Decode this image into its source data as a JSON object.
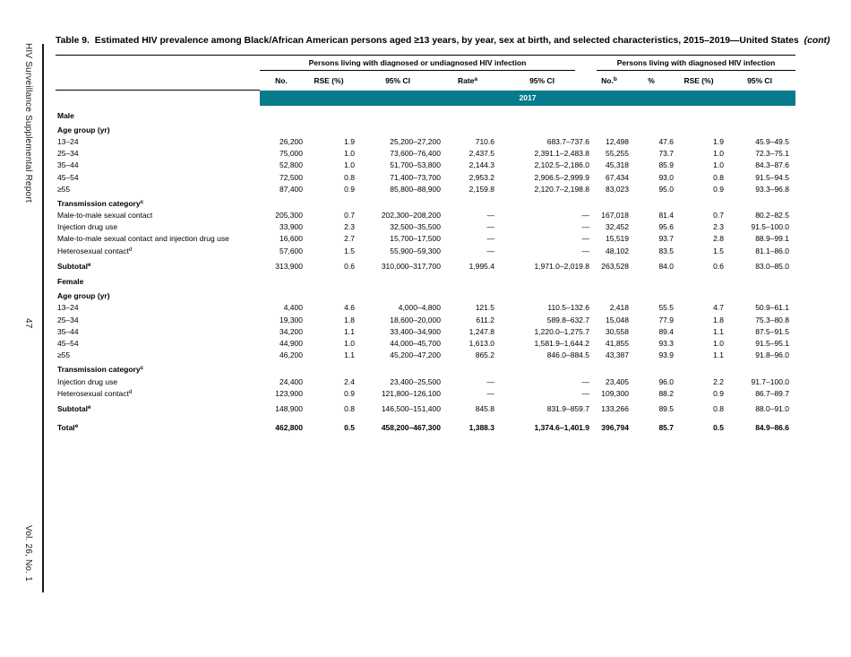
{
  "sidebar": {
    "journal": "HIV Surveillance Supplemental Report",
    "page_number": "47",
    "volume": "Vol. 26, No. 1"
  },
  "title": {
    "prefix": "Table 9.",
    "main": "Estimated HIV prevalence among Black/African American persons aged ≥13 years, by year, sex at birth, and selected characteristics, 2015–2019—United States",
    "cont": "(cont)"
  },
  "table": {
    "group_headers": [
      "Persons living with diagnosed or undiagnosed HIV infection",
      "Persons living with diagnosed HIV infection"
    ],
    "columns": [
      {
        "label": "No."
      },
      {
        "label": "RSE (%)"
      },
      {
        "label": "95% CI"
      },
      {
        "label": "Rate",
        "sup": "a"
      },
      {
        "label": "95% CI"
      },
      {
        "label": "No.",
        "sup": "b"
      },
      {
        "label": "%"
      },
      {
        "label": "RSE (%)"
      },
      {
        "label": "95% CI"
      }
    ],
    "year": "2017",
    "rows": [
      {
        "type": "section",
        "label": "Male"
      },
      {
        "type": "subhead",
        "label": "Age group (yr)"
      },
      {
        "type": "data",
        "label": "13–24",
        "values": [
          "26,200",
          "1.9",
          "25,200–27,200",
          "710.6",
          "683.7–737.6",
          "12,498",
          "47.6",
          "1.9",
          "45.9–49.5"
        ]
      },
      {
        "type": "data",
        "label": "25–34",
        "values": [
          "75,000",
          "1.0",
          "73,600–76,400",
          "2,437.5",
          "2,391.1–2,483.8",
          "55,255",
          "73.7",
          "1.0",
          "72.3–75.1"
        ]
      },
      {
        "type": "data",
        "label": "35–44",
        "values": [
          "52,800",
          "1.0",
          "51,700–53,800",
          "2,144.3",
          "2,102.5–2,186.0",
          "45,318",
          "85.9",
          "1.0",
          "84.3–87.6"
        ]
      },
      {
        "type": "data",
        "label": "45–54",
        "values": [
          "72,500",
          "0.8",
          "71,400–73,700",
          "2,953.2",
          "2,906.5–2,999.9",
          "67,434",
          "93.0",
          "0.8",
          "91.5–94.5"
        ]
      },
      {
        "type": "data",
        "label": "≥55",
        "values": [
          "87,400",
          "0.9",
          "85,800–88,900",
          "2,159.8",
          "2,120.7–2,198.8",
          "83,023",
          "95.0",
          "0.9",
          "93.3–96.8"
        ]
      },
      {
        "type": "subhead",
        "label": "Transmission category",
        "sup": "c"
      },
      {
        "type": "data",
        "label": "Male-to-male sexual contact",
        "values": [
          "205,300",
          "0.7",
          "202,300–208,200",
          "—",
          "—",
          "167,018",
          "81.4",
          "0.7",
          "80.2–82.5"
        ]
      },
      {
        "type": "data",
        "label": "Injection drug use",
        "values": [
          "33,900",
          "2.3",
          "32,500–35,500",
          "—",
          "—",
          "32,452",
          "95.6",
          "2.3",
          "91.5–100.0"
        ]
      },
      {
        "type": "data",
        "label": "Male-to-male sexual contact and injection drug use",
        "values": [
          "16,600",
          "2.7",
          "15,700–17,500",
          "—",
          "—",
          "15,519",
          "93.7",
          "2.8",
          "88.9–99.1"
        ]
      },
      {
        "type": "data",
        "label": "Heterosexual contact",
        "sup": "d",
        "values": [
          "57,600",
          "1.5",
          "55,900–59,300",
          "—",
          "—",
          "48,102",
          "83.5",
          "1.5",
          "81.1–86.0"
        ]
      },
      {
        "type": "subtotal",
        "label": "Subtotal",
        "sup": "e",
        "values": [
          "313,900",
          "0.6",
          "310,000–317,700",
          "1,995.4",
          "1,971.0–2,019.8",
          "263,528",
          "84.0",
          "0.6",
          "83.0–85.0"
        ]
      },
      {
        "type": "section",
        "label": "Female"
      },
      {
        "type": "subhead",
        "label": "Age group (yr)"
      },
      {
        "type": "data",
        "label": "13–24",
        "values": [
          "4,400",
          "4.6",
          "4,000–4,800",
          "121.5",
          "110.5–132.6",
          "2,418",
          "55.5",
          "4.7",
          "50.9–61.1"
        ]
      },
      {
        "type": "data",
        "label": "25–34",
        "values": [
          "19,300",
          "1.8",
          "18,600–20,000",
          "611.2",
          "589.8–632.7",
          "15,048",
          "77.9",
          "1.8",
          "75.3–80.8"
        ]
      },
      {
        "type": "data",
        "label": "35–44",
        "values": [
          "34,200",
          "1.1",
          "33,400–34,900",
          "1,247.8",
          "1,220.0–1,275.7",
          "30,558",
          "89.4",
          "1.1",
          "87.5–91.5"
        ]
      },
      {
        "type": "data",
        "label": "45–54",
        "values": [
          "44,900",
          "1.0",
          "44,000–45,700",
          "1,613.0",
          "1,581.9–1,644.2",
          "41,855",
          "93.3",
          "1.0",
          "91.5–95.1"
        ]
      },
      {
        "type": "data",
        "label": "≥55",
        "values": [
          "46,200",
          "1.1",
          "45,200–47,200",
          "865.2",
          "846.0–884.5",
          "43,387",
          "93.9",
          "1.1",
          "91.8–96.0"
        ]
      },
      {
        "type": "subhead",
        "label": "Transmission category",
        "sup": "c"
      },
      {
        "type": "data",
        "label": "Injection drug use",
        "values": [
          "24,400",
          "2.4",
          "23,400–25,500",
          "—",
          "—",
          "23,405",
          "96.0",
          "2.2",
          "91.7–100.0"
        ]
      },
      {
        "type": "data",
        "label": "Heterosexual contact",
        "sup": "d",
        "values": [
          "123,900",
          "0.9",
          "121,800–126,100",
          "—",
          "—",
          "109,300",
          "88.2",
          "0.9",
          "86.7–89.7"
        ]
      },
      {
        "type": "subtotal",
        "label": "Subtotal",
        "sup": "e",
        "values": [
          "148,900",
          "0.8",
          "146,500–151,400",
          "845.8",
          "831.9–859.7",
          "133,266",
          "89.5",
          "0.8",
          "88.0–91.0"
        ]
      },
      {
        "type": "total",
        "label": "Total",
        "sup": "e",
        "values": [
          "462,800",
          "0.5",
          "458,200–467,300",
          "1,388.3",
          "1,374.6–1,401.9",
          "396,794",
          "85.7",
          "0.5",
          "84.9–86.6"
        ]
      }
    ]
  }
}
